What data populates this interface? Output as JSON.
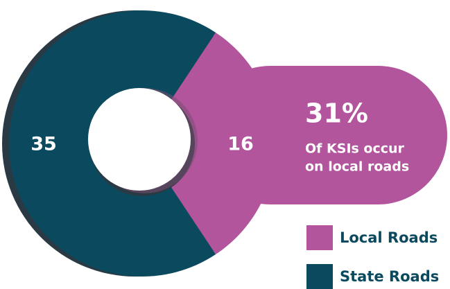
{
  "chart_data": {
    "type": "donut",
    "categories": [
      "Local Roads",
      "State Roads"
    ],
    "values": [
      16,
      35
    ],
    "colors": [
      "#b2559d",
      "#0b4a5e"
    ],
    "headline": "31%",
    "annotation": [
      "Of KSIs occur",
      "on local roads"
    ],
    "legend": "bottom-right"
  }
}
